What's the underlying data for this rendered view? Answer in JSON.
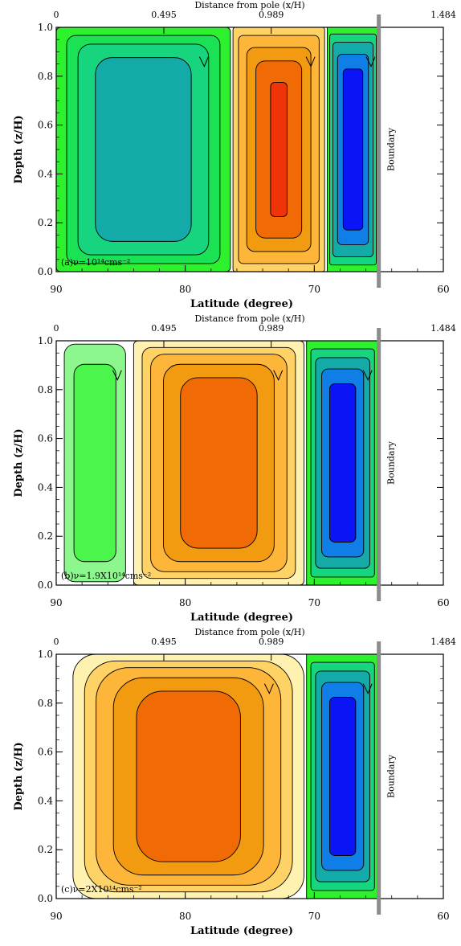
{
  "chart_data": [
    {
      "type": "contour",
      "panel_label": "(a)ν=10¹⁴cms⁻²",
      "xlabel": "Latitude (degree)",
      "ylabel": "Depth (z/H)",
      "top_xlabel": "Distance from pole (x/H)",
      "x_ticks": [
        "90",
        "80",
        "70",
        "60"
      ],
      "y_ticks": [
        "0.0",
        "0.2",
        "0.4",
        "0.6",
        "0.8",
        "1.0"
      ],
      "top_ticks": [
        "0",
        "0.495",
        "0.989",
        "1.484"
      ],
      "boundary_label": "Boundary",
      "xlim": [
        90,
        60
      ],
      "ylim": [
        0,
        1
      ],
      "boundary_latitude": 65,
      "cells": [
        {
          "lat_start": 90,
          "lat_end": 76.5,
          "layers": [
            {
              "color": "#2cf12c",
              "inset": 0.0,
              "radius": 0.05
            },
            {
              "color": "#1be255",
              "inset": 0.12,
              "radius": 0.12
            },
            {
              "color": "#17d47f",
              "inset": 0.25,
              "radius": 0.2
            },
            {
              "color": "#14aaa8",
              "inset": 0.45,
              "radius": 0.35
            }
          ]
        },
        {
          "lat_start": 76.3,
          "lat_end": 69.2,
          "layers": [
            {
              "color": "#ffd266",
              "inset": 0.0,
              "radius": 0.05
            },
            {
              "color": "#fdb53a",
              "inset": 0.12,
              "radius": 0.12
            },
            {
              "color": "#f39b10",
              "inset": 0.3,
              "radius": 0.25
            },
            {
              "color": "#f06a06",
              "inset": 0.5,
              "radius": 0.4
            },
            {
              "color": "#ee3408",
              "inset": 0.82,
              "radius": 0.5
            }
          ]
        },
        {
          "lat_start": 69.0,
          "lat_end": 65.0,
          "layers": [
            {
              "color": "#2cf12c",
              "inset": 0.0,
              "radius": 0.03
            },
            {
              "color": "#17d47f",
              "inset": 0.1,
              "radius": 0.1
            },
            {
              "color": "#14aaa8",
              "inset": 0.22,
              "radius": 0.2
            },
            {
              "color": "#0f7ee6",
              "inset": 0.4,
              "radius": 0.3
            },
            {
              "color": "#0a14f5",
              "inset": 0.62,
              "radius": 0.4
            }
          ]
        }
      ]
    },
    {
      "type": "contour",
      "panel_label": "(b)ν=1.9X10¹⁴cms⁻²",
      "xlabel": "Latitude (degree)",
      "ylabel": "Depth (z/H)",
      "top_xlabel": "Distance from pole (x/H)",
      "x_ticks": [
        "90",
        "80",
        "70",
        "60"
      ],
      "y_ticks": [
        "0.0",
        "0.2",
        "0.4",
        "0.6",
        "0.8",
        "1.0"
      ],
      "top_ticks": [
        "0",
        "0.495",
        "0.989",
        "1.484"
      ],
      "boundary_label": "Boundary",
      "xlim": [
        90,
        60
      ],
      "ylim": [
        0,
        1
      ],
      "boundary_latitude": 65,
      "cells": [
        {
          "lat_start": 89.5,
          "lat_end": 84.5,
          "layers": [
            {
              "color": "#8cf78c",
              "inset": 0.05,
              "radius": 0.35
            },
            {
              "color": "#4cf54c",
              "inset": 0.35,
              "radius": 0.5
            }
          ]
        },
        {
          "lat_start": 84.0,
          "lat_end": 70.8,
          "layers": [
            {
              "color": "#fff2b0",
              "inset": 0.0,
              "radius": 0.05
            },
            {
              "color": "#ffd266",
              "inset": 0.1,
              "radius": 0.12
            },
            {
              "color": "#fdb53a",
              "inset": 0.2,
              "radius": 0.2
            },
            {
              "color": "#f39b10",
              "inset": 0.35,
              "radius": 0.3
            },
            {
              "color": "#f06a06",
              "inset": 0.55,
              "radius": 0.45
            }
          ]
        },
        {
          "lat_start": 70.6,
          "lat_end": 65.0,
          "layers": [
            {
              "color": "#2cf12c",
              "inset": 0.0,
              "radius": 0.03
            },
            {
              "color": "#17d47f",
              "inset": 0.12,
              "radius": 0.1
            },
            {
              "color": "#14aaa8",
              "inset": 0.25,
              "radius": 0.2
            },
            {
              "color": "#0f7ee6",
              "inset": 0.42,
              "radius": 0.3
            },
            {
              "color": "#0a14f5",
              "inset": 0.64,
              "radius": 0.4
            }
          ]
        }
      ]
    },
    {
      "type": "contour",
      "panel_label": "(c)ν=2X10¹⁴cms⁻²",
      "xlabel": "Latitude (degree)",
      "ylabel": "Depth (z/H)",
      "top_xlabel": "Distance from pole (x/H)",
      "x_ticks": [
        "90",
        "80",
        "70",
        "60"
      ],
      "y_ticks": [
        "0.0",
        "0.2",
        "0.4",
        "0.6",
        "0.8",
        "1.0"
      ],
      "top_ticks": [
        "0",
        "0.495",
        "0.989",
        "1.484"
      ],
      "boundary_label": "Boundary",
      "xlim": [
        90,
        60
      ],
      "ylim": [
        0,
        1
      ],
      "boundary_latitude": 65,
      "cells": [
        {
          "lat_start": 88.7,
          "lat_end": 70.8,
          "layers": [
            {
              "color": "#fff2b0",
              "inset": 0.0,
              "radius": 0.2
            },
            {
              "color": "#ffd266",
              "inset": 0.1,
              "radius": 0.3
            },
            {
              "color": "#fdb53a",
              "inset": 0.2,
              "radius": 0.35
            },
            {
              "color": "#f39b10",
              "inset": 0.35,
              "radius": 0.4
            },
            {
              "color": "#f06a06",
              "inset": 0.55,
              "radius": 0.5
            }
          ]
        },
        {
          "lat_start": 70.6,
          "lat_end": 65.0,
          "layers": [
            {
              "color": "#2cf12c",
              "inset": 0.0,
              "radius": 0.03
            },
            {
              "color": "#17d47f",
              "inset": 0.12,
              "radius": 0.1
            },
            {
              "color": "#14aaa8",
              "inset": 0.25,
              "radius": 0.2
            },
            {
              "color": "#0f7ee6",
              "inset": 0.42,
              "radius": 0.3
            },
            {
              "color": "#0a14f5",
              "inset": 0.64,
              "radius": 0.4
            }
          ]
        }
      ]
    }
  ]
}
